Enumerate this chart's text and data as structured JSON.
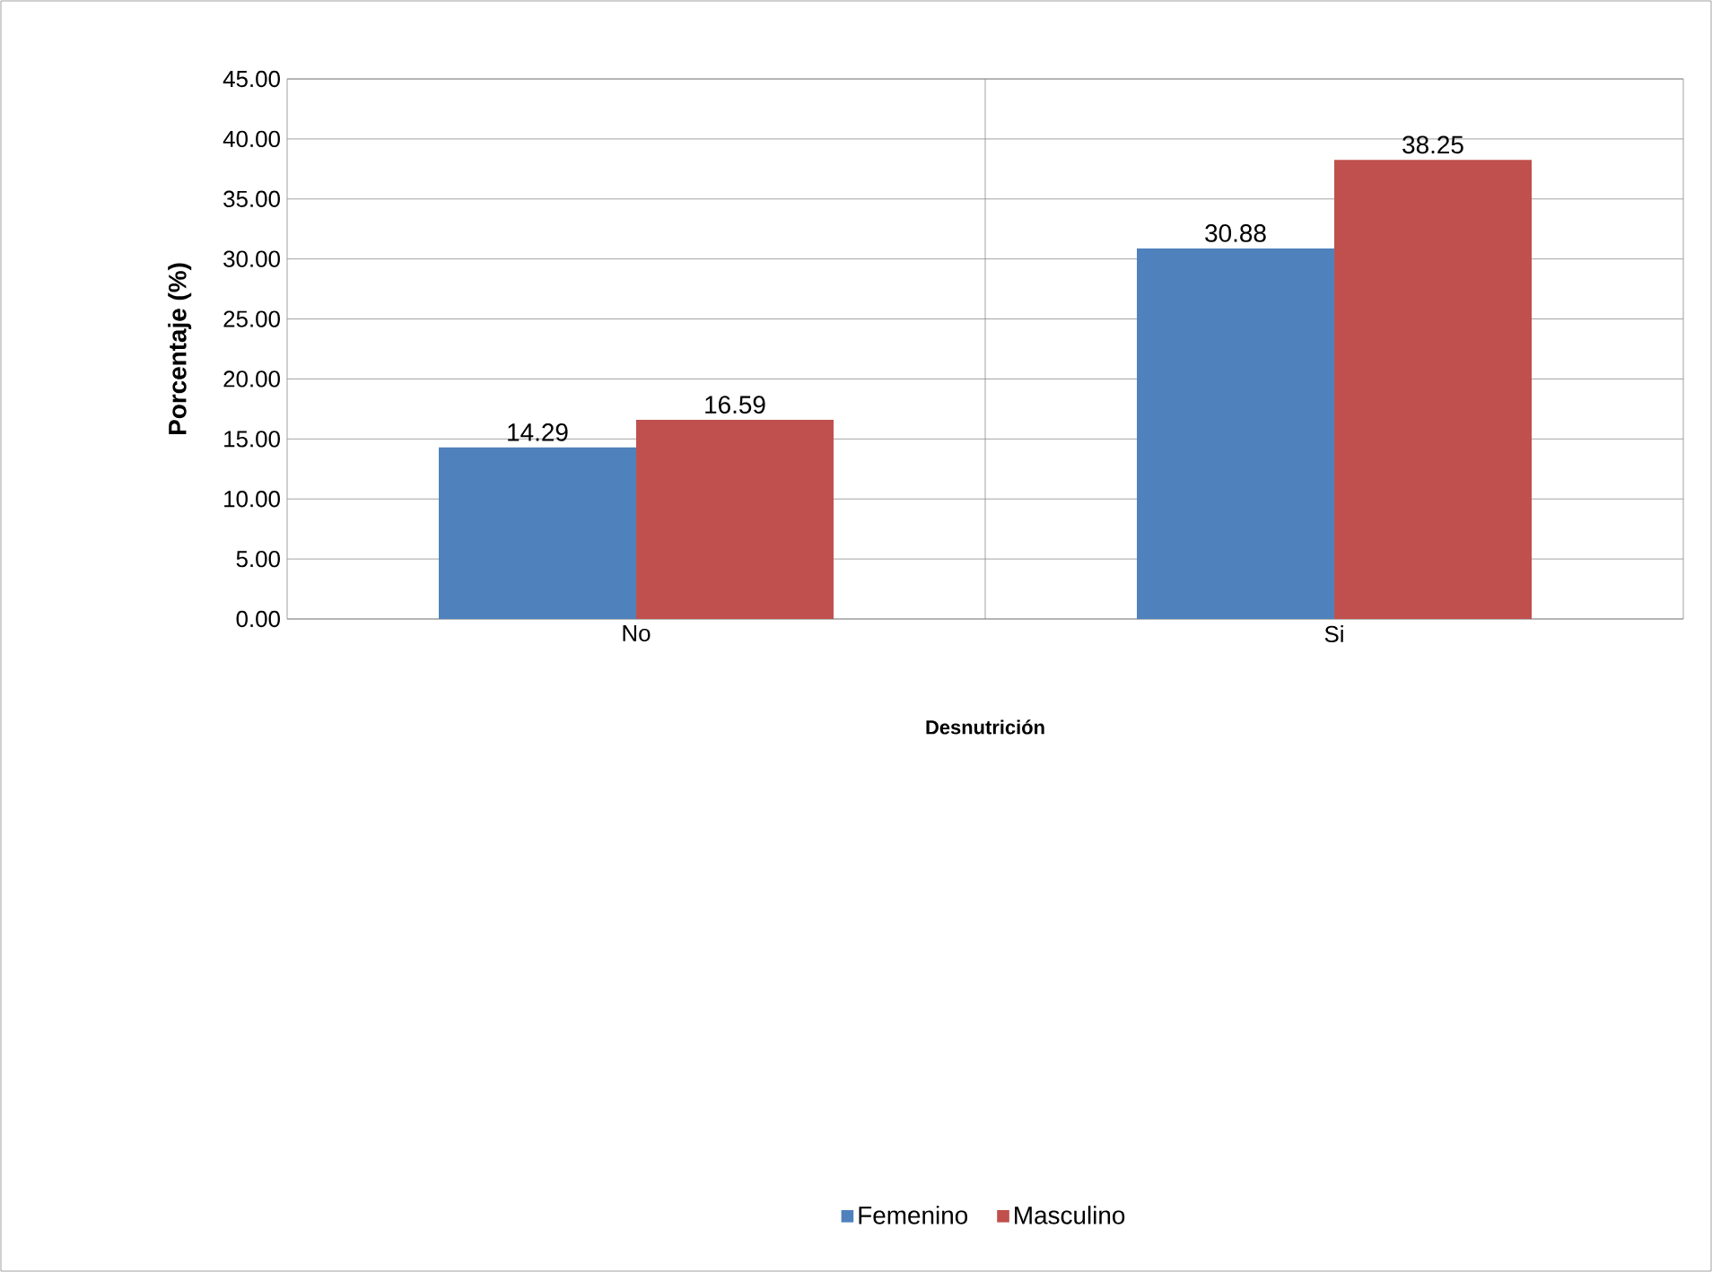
{
  "chart_data": {
    "type": "bar",
    "xlabel": "Desnutrición",
    "ylabel": "Porcentaje (%)",
    "categories": [
      "No",
      "Si"
    ],
    "series": [
      {
        "name": "Femenino",
        "color": "#4f81bd",
        "values": [
          14.29,
          30.88
        ]
      },
      {
        "name": "Masculino",
        "color": "#c0504d",
        "values": [
          16.59,
          38.25
        ]
      }
    ],
    "ylim": [
      0,
      45
    ],
    "yticks": [
      {
        "value": 0,
        "label": "0.00"
      },
      {
        "value": 5,
        "label": "5.00"
      },
      {
        "value": 10,
        "label": "10.00"
      },
      {
        "value": 15,
        "label": "15.00"
      },
      {
        "value": 20,
        "label": "20.00"
      },
      {
        "value": 25,
        "label": "25.00"
      },
      {
        "value": 30,
        "label": "30.00"
      },
      {
        "value": 35,
        "label": "35.00"
      },
      {
        "value": 40,
        "label": "40.00"
      },
      {
        "value": 45,
        "label": "45.00"
      }
    ],
    "grid": true,
    "legend": "bottom",
    "data_labels": true
  }
}
